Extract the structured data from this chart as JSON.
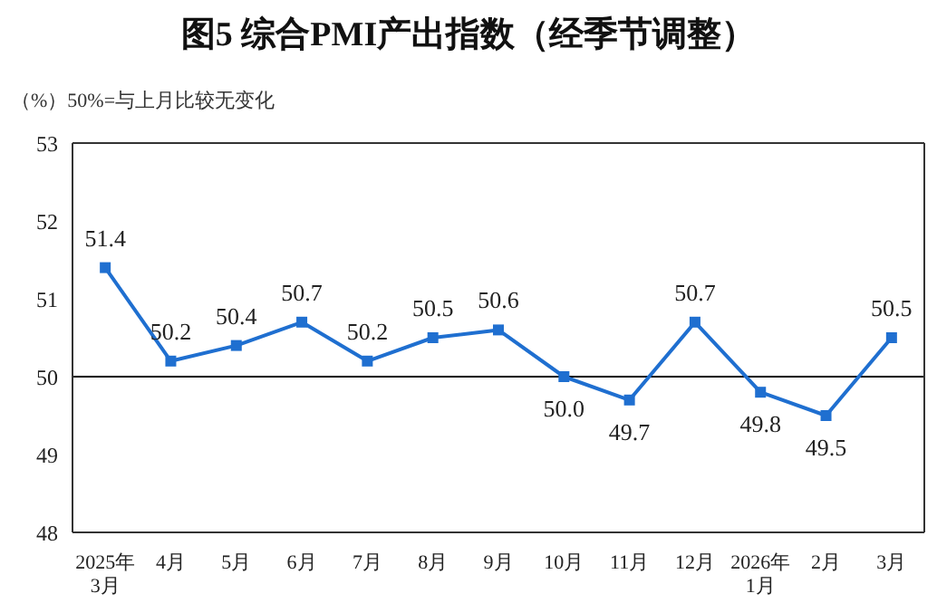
{
  "chart_data": {
    "type": "line",
    "title": "图5  综合PMI产出指数（经季节调整）",
    "ylabel": "（%）",
    "annotations": [
      "50%=与上月比较无变化"
    ],
    "categories": [
      "2025年\n3月",
      "4月",
      "5月",
      "6月",
      "7月",
      "8月",
      "9月",
      "10月",
      "11月",
      "12月",
      "2026年\n1月",
      "2月",
      "3月"
    ],
    "series": [
      {
        "color": "#1f6fd0",
        "values": [
          51.4,
          50.2,
          50.4,
          50.7,
          50.2,
          50.5,
          50.6,
          50.0,
          49.7,
          50.7,
          49.8,
          49.5,
          50.5
        ],
        "value_labels": [
          "51.4",
          "50.2",
          "50.4",
          "50.7",
          "50.2",
          "50.5",
          "50.6",
          "50.0",
          "49.7",
          "50.7",
          "49.8",
          "49.5",
          "50.5"
        ]
      }
    ],
    "ylim": [
      48,
      53
    ],
    "yticks": [
      48,
      49,
      50,
      51,
      52,
      53
    ],
    "ref_lines": [
      {
        "axis": "y",
        "value": 50,
        "color": "#000000"
      }
    ],
    "marker": "square",
    "line_style": "solid",
    "grid": false
  }
}
